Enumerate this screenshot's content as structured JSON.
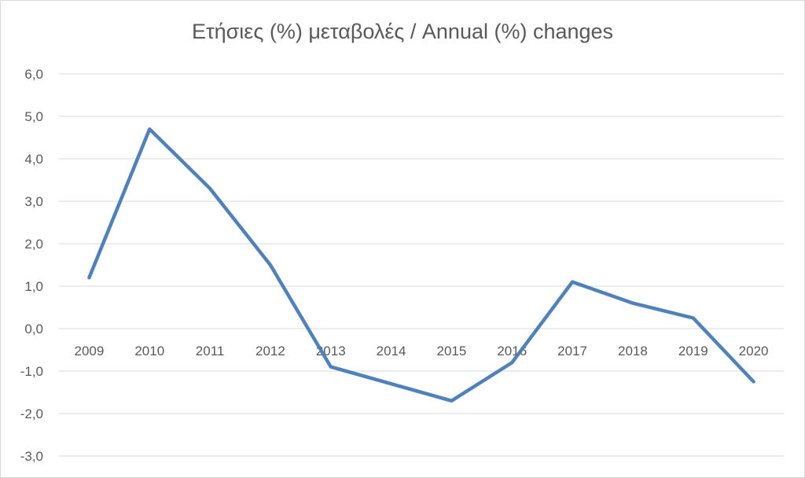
{
  "chart_data": {
    "type": "line",
    "title": "Ετήσιες (%) μεταβολές / Annual (%) changes",
    "xlabel": "",
    "ylabel": "",
    "categories": [
      "2009",
      "2010",
      "2011",
      "2012",
      "2013",
      "2014",
      "2015",
      "2016",
      "2017",
      "2018",
      "2019",
      "2020"
    ],
    "series": [
      {
        "values": [
          1.2,
          4.7,
          3.3,
          1.5,
          -0.9,
          -1.3,
          -1.7,
          -0.8,
          1.1,
          0.6,
          0.25,
          -1.25
        ],
        "color": "#4f81bd"
      }
    ],
    "ylim": [
      -3.0,
      6.0
    ],
    "yticks": [
      "6,0",
      "5,0",
      "4,0",
      "3,0",
      "2,0",
      "1,0",
      "0,0",
      "-1,0",
      "-2,0",
      "-3,0"
    ],
    "grid": true,
    "legend": "none"
  }
}
